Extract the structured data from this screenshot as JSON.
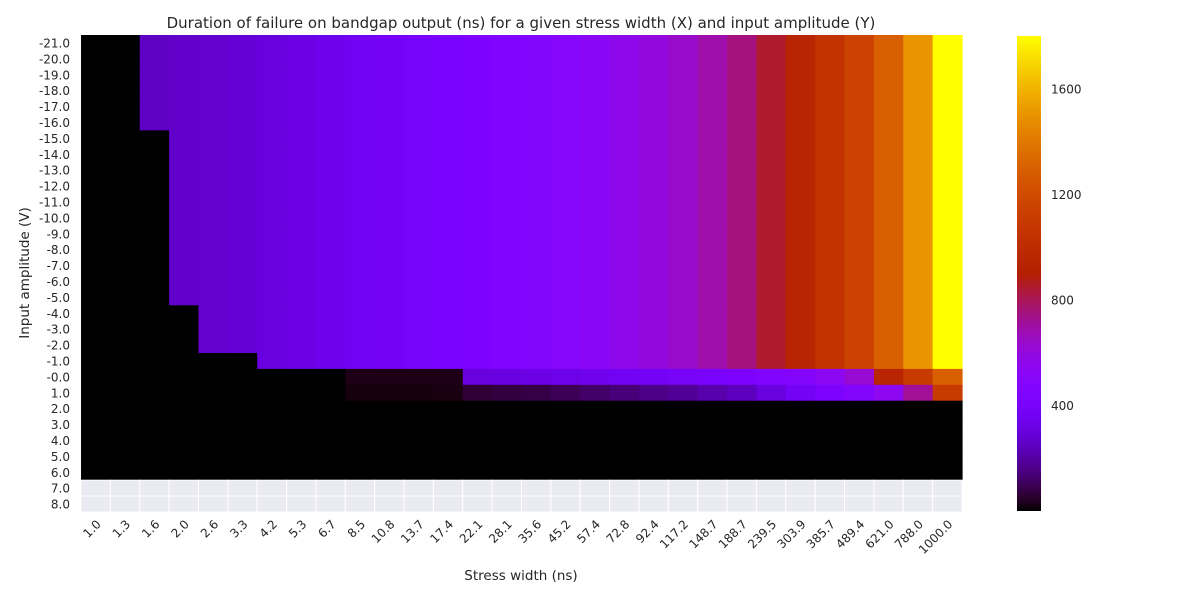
{
  "chart_data": {
    "type": "heatmap",
    "title": "Duration of failure on bandgap output (ns) for a given stress width (X) and input amplitude (Y)",
    "xlabel": "Stress width (ns)",
    "ylabel": "Input amplitude (V)",
    "x_categories": [
      "1.0",
      "1.3",
      "1.6",
      "2.0",
      "2.6",
      "3.3",
      "4.2",
      "5.3",
      "6.7",
      "8.5",
      "10.8",
      "13.7",
      "17.4",
      "22.1",
      "28.1",
      "35.6",
      "45.2",
      "57.4",
      "72.8",
      "92.4",
      "117.2",
      "148.7",
      "188.7",
      "239.5",
      "303.9",
      "385.7",
      "489.4",
      "621.0",
      "788.0",
      "1000.0"
    ],
    "y_categories": [
      "-21.0",
      "-20.0",
      "-19.0",
      "-18.0",
      "-17.0",
      "-16.0",
      "-15.0",
      "-14.0",
      "-13.0",
      "-12.0",
      "-11.0",
      "-10.0",
      "-9.0",
      "-8.0",
      "-7.0",
      "-6.0",
      "-5.0",
      "-4.0",
      "-3.0",
      "-2.0",
      "-1.0",
      "-0.0",
      "1.0",
      "2.0",
      "3.0",
      "4.0",
      "5.0",
      "6.0",
      "7.0",
      "8.0"
    ],
    "colormap": "gnuplot",
    "colorbar": {
      "vmin": 0,
      "vmax": 1800,
      "ticks": [
        400,
        800,
        1200,
        1600
      ]
    },
    "main_profile": [
      0,
      0,
      250,
      260,
      270,
      285,
      300,
      320,
      340,
      360,
      380,
      395,
      410,
      430,
      450,
      470,
      500,
      530,
      560,
      600,
      640,
      690,
      750,
      850,
      950,
      1050,
      1150,
      1300,
      1500,
      1800
    ],
    "thresholds": [
      {
        "from_row": 0,
        "to_row": 5,
        "first_nonzero_col": 2
      },
      {
        "from_row": 6,
        "to_row": 16,
        "first_nonzero_col": 3
      },
      {
        "from_row": 17,
        "to_row": 19,
        "first_nonzero_col": 4
      },
      {
        "from_row": 20,
        "to_row": 20,
        "first_nonzero_col": 6
      }
    ],
    "values": [
      [
        0,
        0,
        250,
        260,
        270,
        285,
        300,
        320,
        340,
        360,
        380,
        395,
        410,
        430,
        450,
        470,
        500,
        530,
        560,
        600,
        640,
        690,
        750,
        850,
        950,
        1050,
        1150,
        1300,
        1500,
        1800
      ],
      [
        0,
        0,
        250,
        260,
        270,
        285,
        300,
        320,
        340,
        360,
        380,
        395,
        410,
        430,
        450,
        470,
        500,
        530,
        560,
        600,
        640,
        690,
        750,
        850,
        950,
        1050,
        1150,
        1300,
        1500,
        1800
      ],
      [
        0,
        0,
        250,
        260,
        270,
        285,
        300,
        320,
        340,
        360,
        380,
        395,
        410,
        430,
        450,
        470,
        500,
        530,
        560,
        600,
        640,
        690,
        750,
        850,
        950,
        1050,
        1150,
        1300,
        1500,
        1800
      ],
      [
        0,
        0,
        250,
        260,
        270,
        285,
        300,
        320,
        340,
        360,
        380,
        395,
        410,
        430,
        450,
        470,
        500,
        530,
        560,
        600,
        640,
        690,
        750,
        850,
        950,
        1050,
        1150,
        1300,
        1500,
        1800
      ],
      [
        0,
        0,
        250,
        260,
        270,
        285,
        300,
        320,
        340,
        360,
        380,
        395,
        410,
        430,
        450,
        470,
        500,
        530,
        560,
        600,
        640,
        690,
        750,
        850,
        950,
        1050,
        1150,
        1300,
        1500,
        1800
      ],
      [
        0,
        0,
        250,
        260,
        270,
        285,
        300,
        320,
        340,
        360,
        380,
        395,
        410,
        430,
        450,
        470,
        500,
        530,
        560,
        600,
        640,
        690,
        750,
        850,
        950,
        1050,
        1150,
        1300,
        1500,
        1800
      ],
      [
        0,
        0,
        0,
        260,
        270,
        285,
        300,
        320,
        340,
        360,
        380,
        395,
        410,
        430,
        450,
        470,
        500,
        530,
        560,
        600,
        640,
        690,
        750,
        850,
        950,
        1050,
        1150,
        1300,
        1500,
        1800
      ],
      [
        0,
        0,
        0,
        260,
        270,
        285,
        300,
        320,
        340,
        360,
        380,
        395,
        410,
        430,
        450,
        470,
        500,
        530,
        560,
        600,
        640,
        690,
        750,
        850,
        950,
        1050,
        1150,
        1300,
        1500,
        1800
      ],
      [
        0,
        0,
        0,
        260,
        270,
        285,
        300,
        320,
        340,
        360,
        380,
        395,
        410,
        430,
        450,
        470,
        500,
        530,
        560,
        600,
        640,
        690,
        750,
        850,
        950,
        1050,
        1150,
        1300,
        1500,
        1800
      ],
      [
        0,
        0,
        0,
        260,
        270,
        285,
        300,
        320,
        340,
        360,
        380,
        395,
        410,
        430,
        450,
        470,
        500,
        530,
        560,
        600,
        640,
        690,
        750,
        850,
        950,
        1050,
        1150,
        1300,
        1500,
        1800
      ],
      [
        0,
        0,
        0,
        260,
        270,
        285,
        300,
        320,
        340,
        360,
        380,
        395,
        410,
        430,
        450,
        470,
        500,
        530,
        560,
        600,
        640,
        690,
        750,
        850,
        950,
        1050,
        1150,
        1300,
        1500,
        1800
      ],
      [
        0,
        0,
        0,
        260,
        270,
        285,
        300,
        320,
        340,
        360,
        380,
        395,
        410,
        430,
        450,
        470,
        500,
        530,
        560,
        600,
        640,
        690,
        750,
        850,
        950,
        1050,
        1150,
        1300,
        1500,
        1800
      ],
      [
        0,
        0,
        0,
        260,
        270,
        285,
        300,
        320,
        340,
        360,
        380,
        395,
        410,
        430,
        450,
        470,
        500,
        530,
        560,
        600,
        640,
        690,
        750,
        850,
        950,
        1050,
        1150,
        1300,
        1500,
        1800
      ],
      [
        0,
        0,
        0,
        260,
        270,
        285,
        300,
        320,
        340,
        360,
        380,
        395,
        410,
        430,
        450,
        470,
        500,
        530,
        560,
        600,
        640,
        690,
        750,
        850,
        950,
        1050,
        1150,
        1300,
        1500,
        1800
      ],
      [
        0,
        0,
        0,
        260,
        270,
        285,
        300,
        320,
        340,
        360,
        380,
        395,
        410,
        430,
        450,
        470,
        500,
        530,
        560,
        600,
        640,
        690,
        750,
        850,
        950,
        1050,
        1150,
        1300,
        1500,
        1800
      ],
      [
        0,
        0,
        0,
        260,
        270,
        285,
        300,
        320,
        340,
        360,
        380,
        395,
        410,
        430,
        450,
        470,
        500,
        530,
        560,
        600,
        640,
        690,
        750,
        850,
        950,
        1050,
        1150,
        1300,
        1500,
        1800
      ],
      [
        0,
        0,
        0,
        260,
        270,
        285,
        300,
        320,
        340,
        360,
        380,
        395,
        410,
        430,
        450,
        470,
        500,
        530,
        560,
        600,
        640,
        690,
        750,
        850,
        950,
        1050,
        1150,
        1300,
        1500,
        1800
      ],
      [
        0,
        0,
        0,
        0,
        270,
        285,
        300,
        320,
        340,
        360,
        380,
        395,
        410,
        430,
        450,
        470,
        500,
        530,
        560,
        600,
        640,
        690,
        750,
        850,
        950,
        1050,
        1150,
        1300,
        1500,
        1800
      ],
      [
        0,
        0,
        0,
        0,
        270,
        285,
        300,
        320,
        340,
        360,
        380,
        395,
        410,
        430,
        450,
        470,
        500,
        530,
        560,
        600,
        640,
        690,
        750,
        850,
        950,
        1050,
        1150,
        1300,
        1500,
        1800
      ],
      [
        0,
        0,
        0,
        0,
        270,
        285,
        300,
        320,
        340,
        360,
        380,
        395,
        410,
        430,
        450,
        470,
        500,
        530,
        560,
        600,
        640,
        690,
        750,
        850,
        950,
        1050,
        1150,
        1300,
        1500,
        1800
      ],
      [
        0,
        0,
        0,
        0,
        0,
        0,
        300,
        320,
        340,
        360,
        380,
        395,
        410,
        430,
        450,
        470,
        500,
        530,
        560,
        600,
        640,
        690,
        750,
        850,
        950,
        1050,
        1150,
        1300,
        1500,
        1800
      ],
      [
        0,
        0,
        0,
        0,
        0,
        0,
        0,
        0,
        0,
        25,
        25,
        25,
        25,
        300,
        310,
        320,
        330,
        345,
        360,
        375,
        390,
        410,
        430,
        450,
        480,
        540,
        620,
        950,
        1100,
        1300
      ],
      [
        0,
        0,
        0,
        0,
        0,
        0,
        0,
        0,
        0,
        15,
        15,
        15,
        20,
        60,
        70,
        80,
        100,
        120,
        140,
        160,
        180,
        210,
        240,
        300,
        370,
        430,
        480,
        550,
        720,
        1100
      ],
      [
        0,
        0,
        0,
        0,
        0,
        0,
        0,
        0,
        0,
        0,
        0,
        0,
        0,
        0,
        0,
        0,
        0,
        0,
        0,
        0,
        0,
        0,
        0,
        0,
        0,
        0,
        0,
        0,
        0,
        0
      ],
      [
        0,
        0,
        0,
        0,
        0,
        0,
        0,
        0,
        0,
        0,
        0,
        0,
        0,
        0,
        0,
        0,
        0,
        0,
        0,
        0,
        0,
        0,
        0,
        0,
        0,
        0,
        0,
        0,
        0,
        0
      ],
      [
        0,
        0,
        0,
        0,
        0,
        0,
        0,
        0,
        0,
        0,
        0,
        0,
        0,
        0,
        0,
        0,
        0,
        0,
        0,
        0,
        0,
        0,
        0,
        0,
        0,
        0,
        0,
        0,
        0,
        0
      ],
      [
        0,
        0,
        0,
        0,
        0,
        0,
        0,
        0,
        0,
        0,
        0,
        0,
        0,
        0,
        0,
        0,
        0,
        0,
        0,
        0,
        0,
        0,
        0,
        0,
        0,
        0,
        0,
        0,
        0,
        0
      ],
      [
        0,
        0,
        0,
        0,
        0,
        0,
        0,
        0,
        0,
        0,
        0,
        0,
        0,
        0,
        0,
        0,
        0,
        0,
        0,
        0,
        0,
        0,
        0,
        0,
        0,
        0,
        0,
        0,
        0,
        0
      ],
      [
        null,
        null,
        null,
        null,
        null,
        null,
        null,
        null,
        null,
        null,
        null,
        null,
        null,
        null,
        null,
        null,
        null,
        null,
        null,
        null,
        null,
        null,
        null,
        null,
        null,
        null,
        null,
        null,
        null,
        null
      ],
      [
        null,
        null,
        null,
        null,
        null,
        null,
        null,
        null,
        null,
        null,
        null,
        null,
        null,
        null,
        null,
        null,
        null,
        null,
        null,
        null,
        null,
        null,
        null,
        null,
        null,
        null,
        null,
        null,
        null,
        null
      ]
    ],
    "missing_cell_color": "#eaeaf2",
    "grid": true
  }
}
